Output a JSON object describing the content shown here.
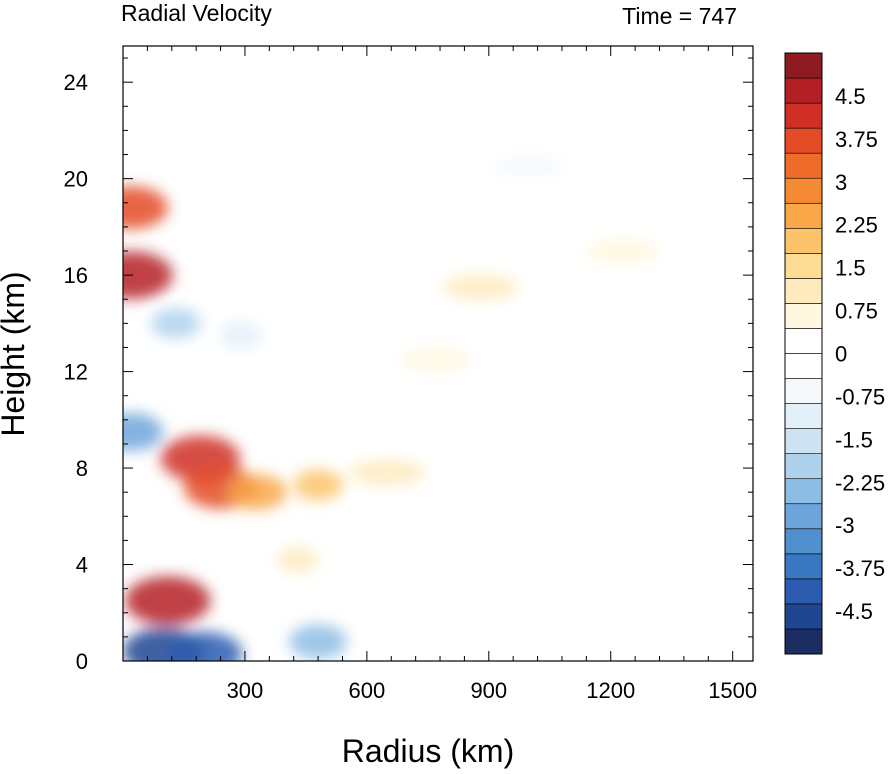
{
  "chart_data": {
    "type": "heatmap",
    "title": "Radial Velocity",
    "subtitle": "Time = 747",
    "xlabel": "Radius (km)",
    "ylabel": "Height (km)",
    "xlim": [
      0,
      1550
    ],
    "ylim": [
      0,
      25.5
    ],
    "xticks": [
      300,
      600,
      900,
      1200,
      1500
    ],
    "yticks": [
      0,
      4,
      8,
      12,
      16,
      20,
      24
    ],
    "grid": false,
    "colorbar": {
      "min": -5.25,
      "max": 5.25,
      "step": 0.25,
      "labels": [
        "4.5",
        "3.75",
        "3",
        "2.25",
        "1.5",
        "0.75",
        "0",
        "-0.75",
        "-1.5",
        "-2.25",
        "-3",
        "-3.75",
        "-4.5"
      ],
      "colors": [
        "#1b2e63",
        "#214691",
        "#2b5cb0",
        "#3a77c2",
        "#5090cf",
        "#6ea6db",
        "#8ebde4",
        "#aed2ec",
        "#cde3f2",
        "#e4f0f8",
        "#f5f9fc",
        "#ffffff",
        "#ffffff",
        "#fff7df",
        "#fdebbd",
        "#fddc94",
        "#fcc36a",
        "#f9a748",
        "#f58a34",
        "#ee6b2a",
        "#e34b26",
        "#cf2f25",
        "#b41f26",
        "#8f1a1f"
      ]
    },
    "features": [
      {
        "x": 190,
        "y": 8.4,
        "value": 4.3
      },
      {
        "x": 240,
        "y": 7.2,
        "value": 3.8
      },
      {
        "x": 330,
        "y": 7.0,
        "value": 2.6
      },
      {
        "x": 480,
        "y": 7.3,
        "value": 1.8
      },
      {
        "x": 650,
        "y": 7.8,
        "value": 1.0
      },
      {
        "x": 110,
        "y": 2.5,
        "value": 4.8
      },
      {
        "x": 20,
        "y": 16.0,
        "value": 4.6
      },
      {
        "x": 20,
        "y": 18.8,
        "value": 3.8
      },
      {
        "x": 130,
        "y": 14.0,
        "value": -1.8
      },
      {
        "x": 290,
        "y": 13.5,
        "value": -1.2
      },
      {
        "x": 20,
        "y": 9.5,
        "value": -3.0
      },
      {
        "x": 100,
        "y": 0.4,
        "value": -4.5
      },
      {
        "x": 200,
        "y": 0.3,
        "value": -4.0
      },
      {
        "x": 480,
        "y": 0.8,
        "value": -2.5
      },
      {
        "x": 880,
        "y": 15.5,
        "value": 0.9
      },
      {
        "x": 1230,
        "y": 17.0,
        "value": 0.8
      },
      {
        "x": 770,
        "y": 12.5,
        "value": 0.5
      },
      {
        "x": 430,
        "y": 4.2,
        "value": 1.0
      },
      {
        "x": 1000,
        "y": 20.5,
        "value": -0.6
      }
    ]
  }
}
